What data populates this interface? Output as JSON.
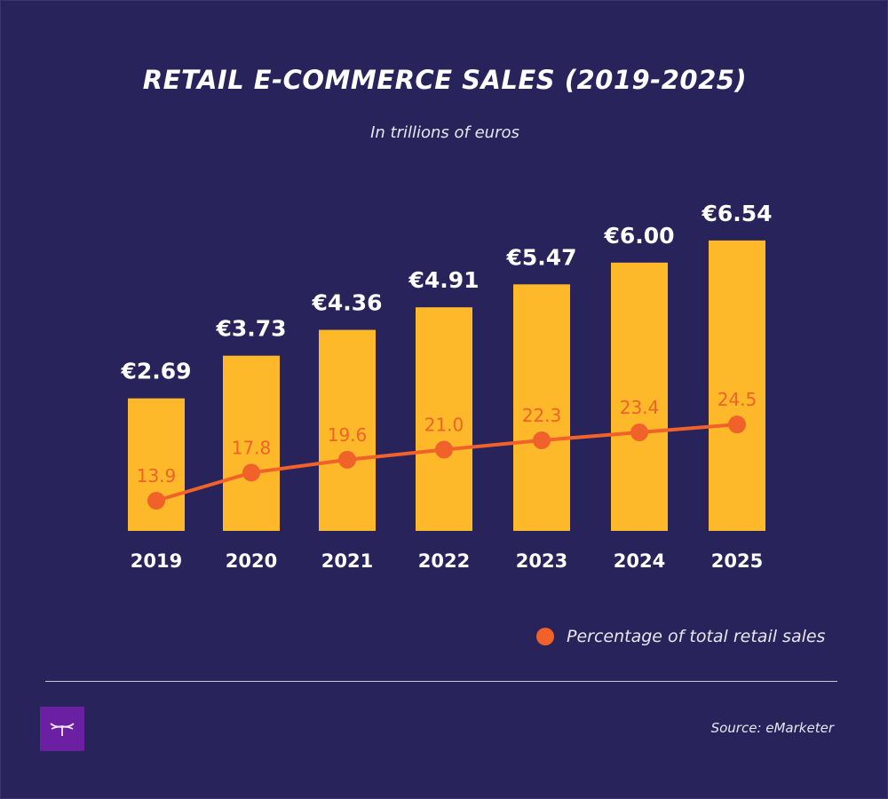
{
  "chart_data": {
    "type": "bar",
    "title": "RETAIL E-COMMERCE SALES (2019-2025)",
    "subtitle": "In trillions of euros",
    "categories": [
      "2019",
      "2020",
      "2021",
      "2022",
      "2023",
      "2024",
      "2025"
    ],
    "series": [
      {
        "type": "bar",
        "values": [
          2.69,
          3.73,
          4.36,
          4.91,
          5.47,
          6.0,
          6.54
        ],
        "labels": [
          "€2.69",
          "€3.73",
          "€4.36",
          "€4.91",
          "€5.47",
          "€6.00",
          "€6.54"
        ],
        "color": "#fdb92a"
      },
      {
        "type": "line",
        "name": "Percentage of total retail sales",
        "values": [
          13.9,
          17.8,
          19.6,
          21.0,
          22.3,
          23.4,
          24.5
        ],
        "labels": [
          "13.9",
          "17.8",
          "19.6",
          "21.0",
          "22.3",
          "23.4",
          "24.5"
        ],
        "color": "#f0622a"
      }
    ],
    "grid": false,
    "legend": "bottom-right"
  },
  "source": "Source: eMarketer",
  "colors": {
    "background": "#28235b",
    "logo": "#6b1fa3"
  },
  "logo_icon": "dragonfly-logo-icon"
}
